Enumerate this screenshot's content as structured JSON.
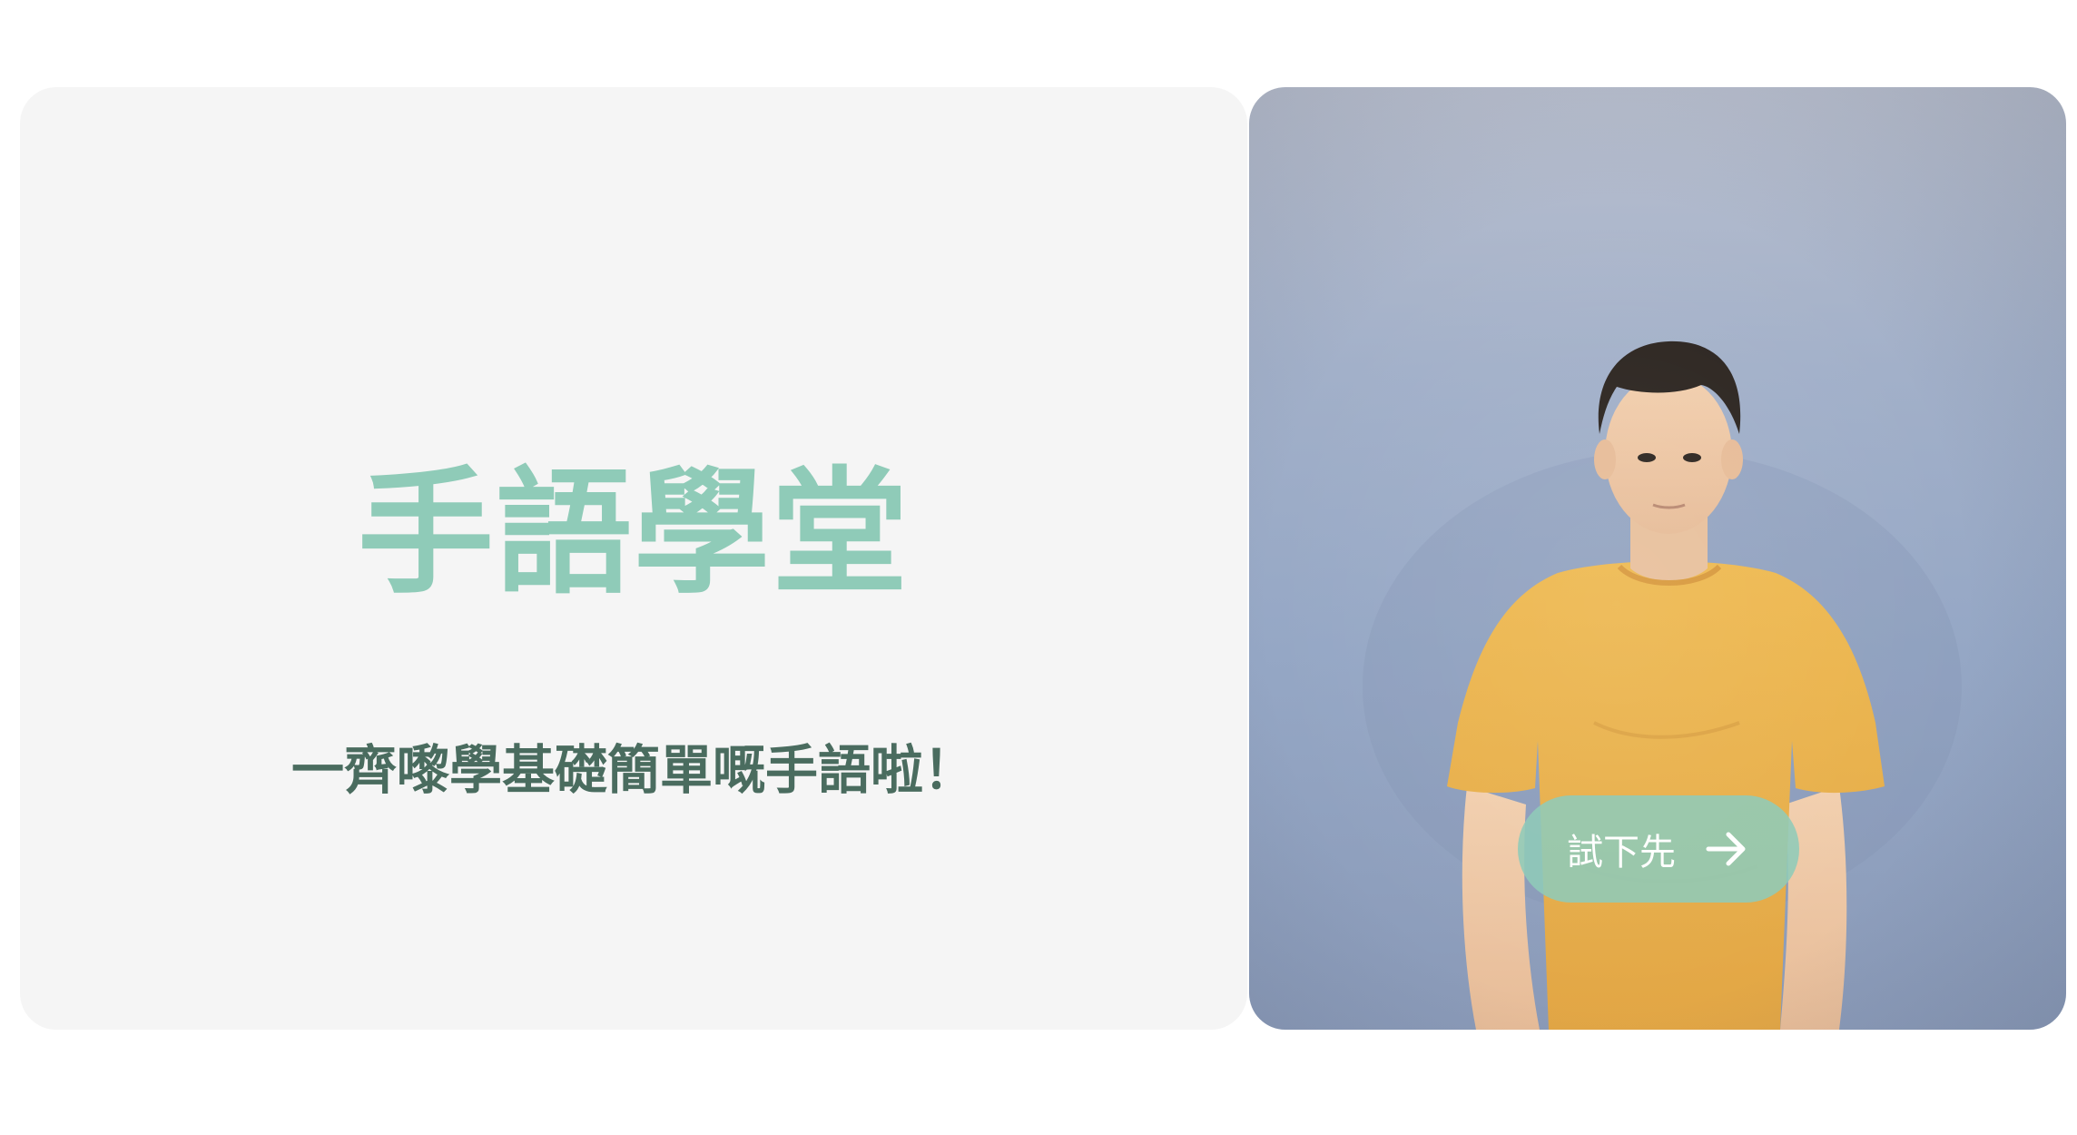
{
  "hero": {
    "title": "手語學堂",
    "subtitle": "一齊嚟學基礎簡單嘅手語啦！"
  },
  "video": {
    "cta_label": "試下先",
    "cta_icon": "arrow-right-icon"
  },
  "colors": {
    "accent": "#8fcbb8",
    "subtitle": "#4a6c5f",
    "card_bg": "#f5f5f5",
    "shirt": "#e9b24f"
  }
}
